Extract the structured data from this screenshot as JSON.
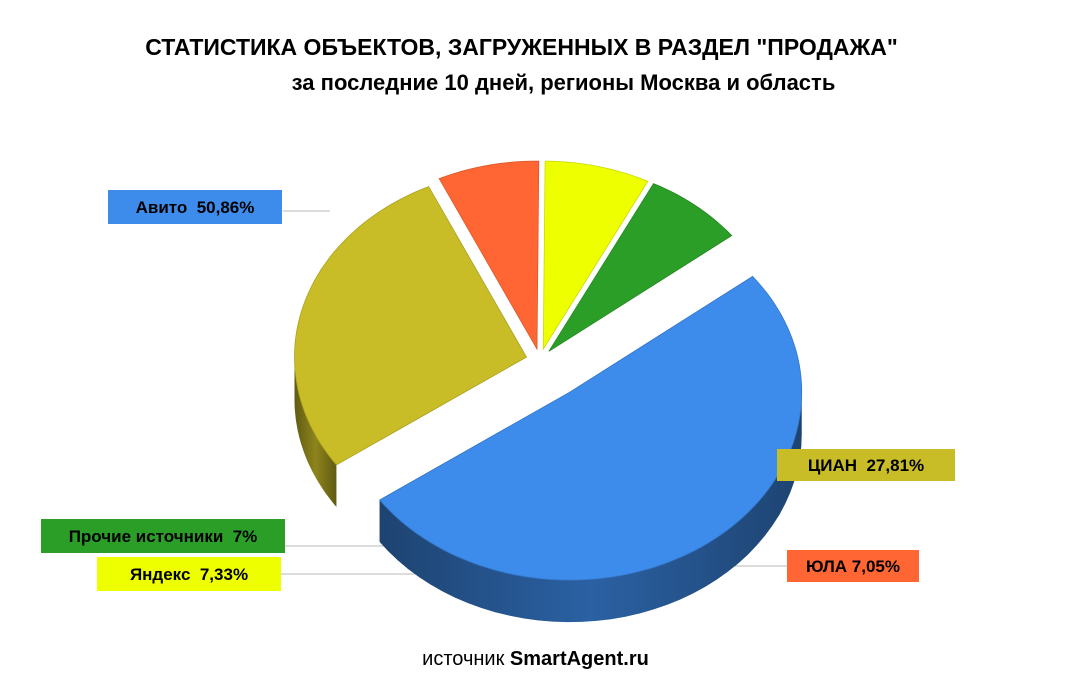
{
  "title": "СТАТИСТИКА ОБЪЕКТОВ, ЗАГРУЖЕННЫХ В РАЗДЕЛ \"ПРОДАЖА\"",
  "subtitle": "за последние 10 дней, регионы Москва и область",
  "source_prefix": "источник",
  "source_name": "SmartAgent.ru",
  "chart_data": {
    "type": "pie",
    "style": "3d-exploded",
    "series": [
      {
        "name": "Авито",
        "value": 50.86,
        "label": "Авито  50,86%",
        "color": "#3d8bea",
        "label_color": "#3d8bea",
        "label_text_color": "#000000"
      },
      {
        "name": "ЦИАН",
        "value": 27.81,
        "label": "ЦИАН  27,81%",
        "color": "#c8bd27",
        "label_color": "#c8bd27",
        "label_text_color": "#000000"
      },
      {
        "name": "ЮЛА",
        "value": 7.05,
        "label": "ЮЛА 7,05%",
        "color": "#ff6633",
        "label_color": "#ff6633",
        "label_text_color": "#000000"
      },
      {
        "name": "Яндекс",
        "value": 7.33,
        "label": "Яндекс  7,33%",
        "color": "#eeff00",
        "label_color": "#eeff00",
        "label_text_color": "#000000"
      },
      {
        "name": "Прочие источники",
        "value": 7.0,
        "label": "Прочие источники  7%",
        "color": "#2a9e26",
        "label_color": "#2a9e26",
        "label_text_color": "#000000"
      }
    ]
  }
}
